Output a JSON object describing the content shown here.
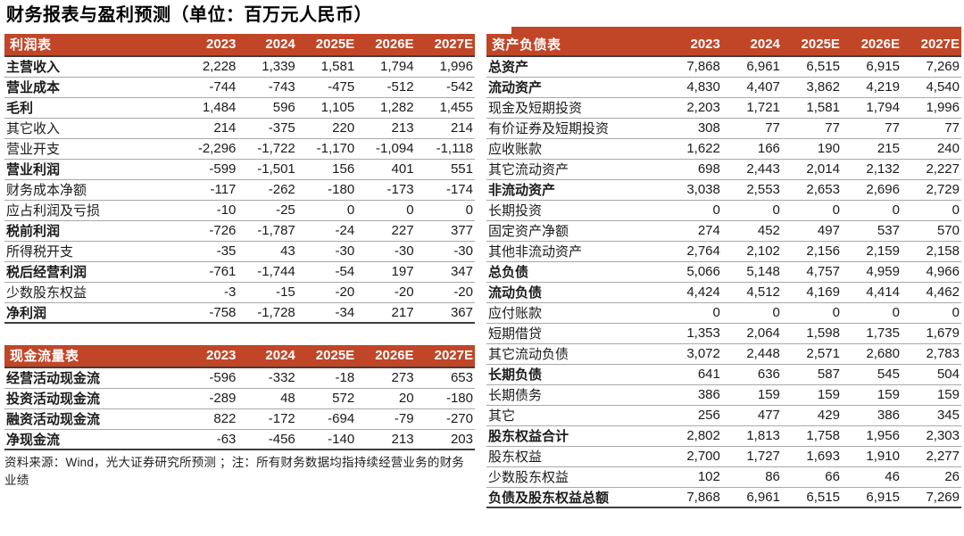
{
  "page_title": "财务报表与盈利预测（单位：百万元人民币）",
  "colors": {
    "header_bg": "#C14628",
    "header_text": "#FFFFFF",
    "row_rule": "#A9A9A9",
    "table_end_rule": "#3F3F3F"
  },
  "footnote": "资料来源：Wind，光大证券研究所预测 ；注：所有财务数据均指持续经营业务的财务业绩",
  "tables": {
    "income": {
      "title": "利润表",
      "columns": [
        "2023",
        "2024",
        "2025E",
        "2026E",
        "2027E"
      ],
      "rows": [
        {
          "label": "主营收入",
          "bold": true,
          "values": [
            "2,228",
            "1,339",
            "1,581",
            "1,794",
            "1,996"
          ]
        },
        {
          "label": "营业成本",
          "bold": true,
          "values": [
            "-744",
            "-743",
            "-475",
            "-512",
            "-542"
          ]
        },
        {
          "label": "毛利",
          "bold": true,
          "values": [
            "1,484",
            "596",
            "1,105",
            "1,282",
            "1,455"
          ]
        },
        {
          "label": "其它收入",
          "bold": false,
          "values": [
            "214",
            "-375",
            "220",
            "213",
            "214"
          ]
        },
        {
          "label": "营业开支",
          "bold": false,
          "values": [
            "-2,296",
            "-1,722",
            "-1,170",
            "-1,094",
            "-1,118"
          ]
        },
        {
          "label": "营业利润",
          "bold": true,
          "values": [
            "-599",
            "-1,501",
            "156",
            "401",
            "551"
          ]
        },
        {
          "label": "财务成本净额",
          "bold": false,
          "values": [
            "-117",
            "-262",
            "-180",
            "-173",
            "-174"
          ]
        },
        {
          "label": "应占利润及亏损",
          "bold": false,
          "values": [
            "-10",
            "-25",
            "0",
            "0",
            "0"
          ]
        },
        {
          "label": "税前利润",
          "bold": true,
          "values": [
            "-726",
            "-1,787",
            "-24",
            "227",
            "377"
          ]
        },
        {
          "label": "所得税开支",
          "bold": false,
          "values": [
            "-35",
            "43",
            "-30",
            "-30",
            "-30"
          ]
        },
        {
          "label": "税后经营利润",
          "bold": true,
          "values": [
            "-761",
            "-1,744",
            "-54",
            "197",
            "347"
          ]
        },
        {
          "label": "少数股东权益",
          "bold": false,
          "values": [
            "-3",
            "-15",
            "-20",
            "-20",
            "-20"
          ]
        },
        {
          "label": "净利润",
          "bold": true,
          "values": [
            "-758",
            "-1,728",
            "-34",
            "217",
            "367"
          ]
        }
      ]
    },
    "cashflow": {
      "title": "现金流量表",
      "columns": [
        "2023",
        "2024",
        "2025E",
        "2026E",
        "2027E"
      ],
      "rows": [
        {
          "label": "经营活动现金流",
          "bold": true,
          "values": [
            "-596",
            "-332",
            "-18",
            "273",
            "653"
          ]
        },
        {
          "label": "投资活动现金流",
          "bold": true,
          "values": [
            "-289",
            "48",
            "572",
            "20",
            "-180"
          ]
        },
        {
          "label": "融资活动现金流",
          "bold": true,
          "values": [
            "822",
            "-172",
            "-694",
            "-79",
            "-270"
          ]
        },
        {
          "label": "净现金流",
          "bold": true,
          "values": [
            "-63",
            "-456",
            "-140",
            "213",
            "203"
          ]
        }
      ]
    },
    "balance": {
      "title": "资产负债表",
      "columns": [
        "2023",
        "2024",
        "2025E",
        "2026E",
        "2027E"
      ],
      "rows": [
        {
          "label": "总资产",
          "bold": true,
          "values": [
            "7,868",
            "6,961",
            "6,515",
            "6,915",
            "7,269"
          ]
        },
        {
          "label": "流动资产",
          "bold": true,
          "values": [
            "4,830",
            "4,407",
            "3,862",
            "4,219",
            "4,540"
          ]
        },
        {
          "label": "现金及短期投资",
          "bold": false,
          "values": [
            "2,203",
            "1,721",
            "1,581",
            "1,794",
            "1,996"
          ]
        },
        {
          "label": "有价证券及短期投资",
          "bold": false,
          "values": [
            "308",
            "77",
            "77",
            "77",
            "77"
          ]
        },
        {
          "label": "应收账款",
          "bold": false,
          "values": [
            "1,622",
            "166",
            "190",
            "215",
            "240"
          ]
        },
        {
          "label": "其它流动资产",
          "bold": false,
          "values": [
            "698",
            "2,443",
            "2,014",
            "2,132",
            "2,227"
          ]
        },
        {
          "label": "非流动资产",
          "bold": true,
          "values": [
            "3,038",
            "2,553",
            "2,653",
            "2,696",
            "2,729"
          ]
        },
        {
          "label": "长期投资",
          "bold": false,
          "values": [
            "0",
            "0",
            "0",
            "0",
            "0"
          ]
        },
        {
          "label": "固定资产净额",
          "bold": false,
          "values": [
            "274",
            "452",
            "497",
            "537",
            "570"
          ]
        },
        {
          "label": "其他非流动资产",
          "bold": false,
          "values": [
            "2,764",
            "2,102",
            "2,156",
            "2,159",
            "2,158"
          ]
        },
        {
          "label": "总负债",
          "bold": true,
          "values": [
            "5,066",
            "5,148",
            "4,757",
            "4,959",
            "4,966"
          ]
        },
        {
          "label": "流动负债",
          "bold": true,
          "values": [
            "4,424",
            "4,512",
            "4,169",
            "4,414",
            "4,462"
          ]
        },
        {
          "label": "应付账款",
          "bold": false,
          "values": [
            "0",
            "0",
            "0",
            "0",
            "0"
          ]
        },
        {
          "label": "短期借贷",
          "bold": false,
          "values": [
            "1,353",
            "2,064",
            "1,598",
            "1,735",
            "1,679"
          ]
        },
        {
          "label": "其它流动负债",
          "bold": false,
          "values": [
            "3,072",
            "2,448",
            "2,571",
            "2,680",
            "2,783"
          ]
        },
        {
          "label": "长期负债",
          "bold": true,
          "values": [
            "641",
            "636",
            "587",
            "545",
            "504"
          ]
        },
        {
          "label": "长期债务",
          "bold": false,
          "values": [
            "386",
            "159",
            "159",
            "159",
            "159"
          ]
        },
        {
          "label": "其它",
          "bold": false,
          "values": [
            "256",
            "477",
            "429",
            "386",
            "345"
          ]
        },
        {
          "label": "股东权益合计",
          "bold": true,
          "values": [
            "2,802",
            "1,813",
            "1,758",
            "1,956",
            "2,303"
          ]
        },
        {
          "label": "股东权益",
          "bold": false,
          "values": [
            "2,700",
            "1,727",
            "1,693",
            "1,910",
            "2,277"
          ]
        },
        {
          "label": "少数股东权益",
          "bold": false,
          "values": [
            "102",
            "86",
            "66",
            "46",
            "26"
          ]
        },
        {
          "label": "负债及股东权益总额",
          "bold": true,
          "values": [
            "7,868",
            "6,961",
            "6,515",
            "6,915",
            "7,269"
          ]
        }
      ]
    }
  }
}
